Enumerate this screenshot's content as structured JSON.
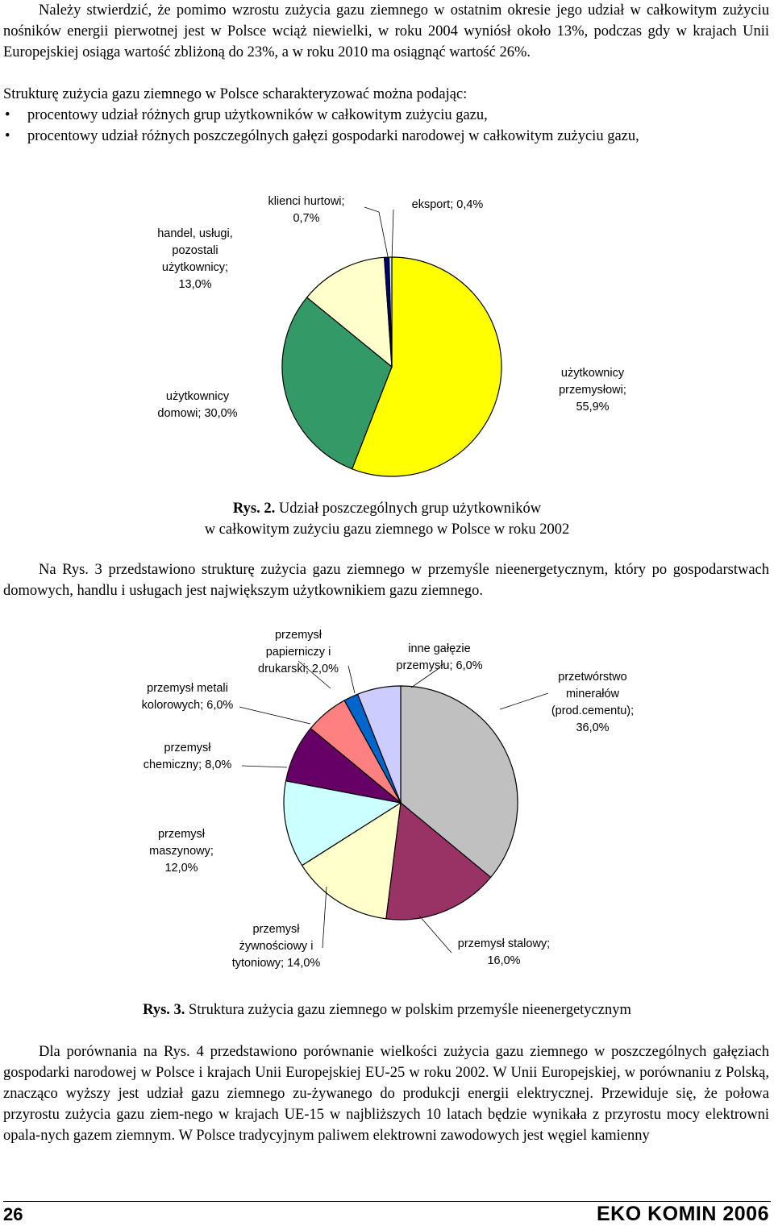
{
  "page": {
    "para1": "Należy stwierdzić, że pomimo wzrostu zużycia gazu ziemnego w ostatnim okresie jego udział w całkowitym zużyciu nośników energii pierwotnej jest w Polsce wciąż niewielki, w roku 2004 wyniósł około 13%, podczas gdy w krajach Unii Europejskiej osiąga wartość zbliżoną do 23%, a w roku 2010 ma osiągnąć wartość 26%.",
    "para2": "Strukturę zużycia gazu ziemnego w Polsce scharakteryzować można podając:",
    "bullet_symbol": "•",
    "bullet1": "procentowy udział różnych grup użytkowników w całkowitym zużyciu gazu,",
    "bullet2": "procentowy udział różnych poszczególnych gałęzi gospodarki narodowej w całkowitym zużyciu gazu,",
    "para3": "Na Rys. 3 przedstawiono strukturę zużycia gazu ziemnego w przemyśle nieenergetycznym, który po gospodarstwach domowych, handlu i usługach jest największym użytkownikiem gazu ziemnego.",
    "para4": "Dla porównania na Rys. 4 przedstawiono porównanie wielkości zużycia gazu ziemnego w poszczególnych gałęziach gospodarki narodowej w Polsce i krajach Unii Europejskiej EU-25 w roku 2002. W Unii Europejskiej, w porównaniu z Polską, znacząco wyższy jest udział gazu ziemnego zu-żywanego do produkcji energii elektrycznej. Przewiduje się, że połowa przyrostu zużycia gazu ziem-nego w krajach UE-15 w najbliższych 10 latach będzie wynikała z przyrostu mocy elektrowni opala-nych gazem ziemnym. W Polsce tradycyjnym paliwem elektrowni zawodowych jest węgiel kamienny",
    "fig2_num": "Rys. 2.",
    "fig2_caption_1": "Udział poszczególnych grup użytkowników",
    "fig2_caption_2": "w całkowitym zużyciu gazu ziemnego w Polsce w roku 2002",
    "fig3_num": "Rys. 3.",
    "fig3_caption": "Struktura zużycia gazu ziemnego w polskim przemyśle nieenergetycznym",
    "page_number": "26",
    "journal": "EKO KOMIN 2006"
  },
  "chart_data": [
    {
      "type": "pie",
      "title": "",
      "series": [
        {
          "label": "użytkownicy\nprzemysłowi;\n55,9%",
          "value": 55.9,
          "color": "#FFFF00"
        },
        {
          "label": "użytkownicy\ndomowi; 30,0%",
          "value": 30.0,
          "color": "#339966"
        },
        {
          "label": "handel, usługi,\npozostali\nużytkownicy;\n13,0%",
          "value": 13.0,
          "color": "#FFFFCC"
        },
        {
          "label": "klienci hurtowi;\n0,7%",
          "value": 0.7,
          "color": "#000080"
        },
        {
          "label": "eksport; 0,4%",
          "value": 0.4,
          "color": "#CCFFFF"
        }
      ]
    },
    {
      "type": "pie",
      "title": "",
      "series": [
        {
          "label": "przetwórstwo\nminerałów\n(prod.cementu);\n36,0%",
          "value": 36.0,
          "color": "#C0C0C0"
        },
        {
          "label": "przemysł stalowy;\n16,0%",
          "value": 16.0,
          "color": "#993366"
        },
        {
          "label": "przemysł\nżywnościowy i\ntytoniowy; 14,0%",
          "value": 14.0,
          "color": "#FFFFCC"
        },
        {
          "label": "przemysł\nmaszynowy;\n12,0%",
          "value": 12.0,
          "color": "#CCFFFF"
        },
        {
          "label": "przemysł\nchemiczny; 8,0%",
          "value": 8.0,
          "color": "#660066"
        },
        {
          "label": "przemysł metali\nkolorowych; 6,0%",
          "value": 6.0,
          "color": "#FF8080"
        },
        {
          "label": "przemysł\npapierniczy i\ndrukarski; 2,0%",
          "value": 2.0,
          "color": "#0066CC"
        },
        {
          "label": "inne gałęzie\nprzemysłu; 6,0%",
          "value": 6.0,
          "color": "#CCCCFF"
        }
      ]
    }
  ]
}
